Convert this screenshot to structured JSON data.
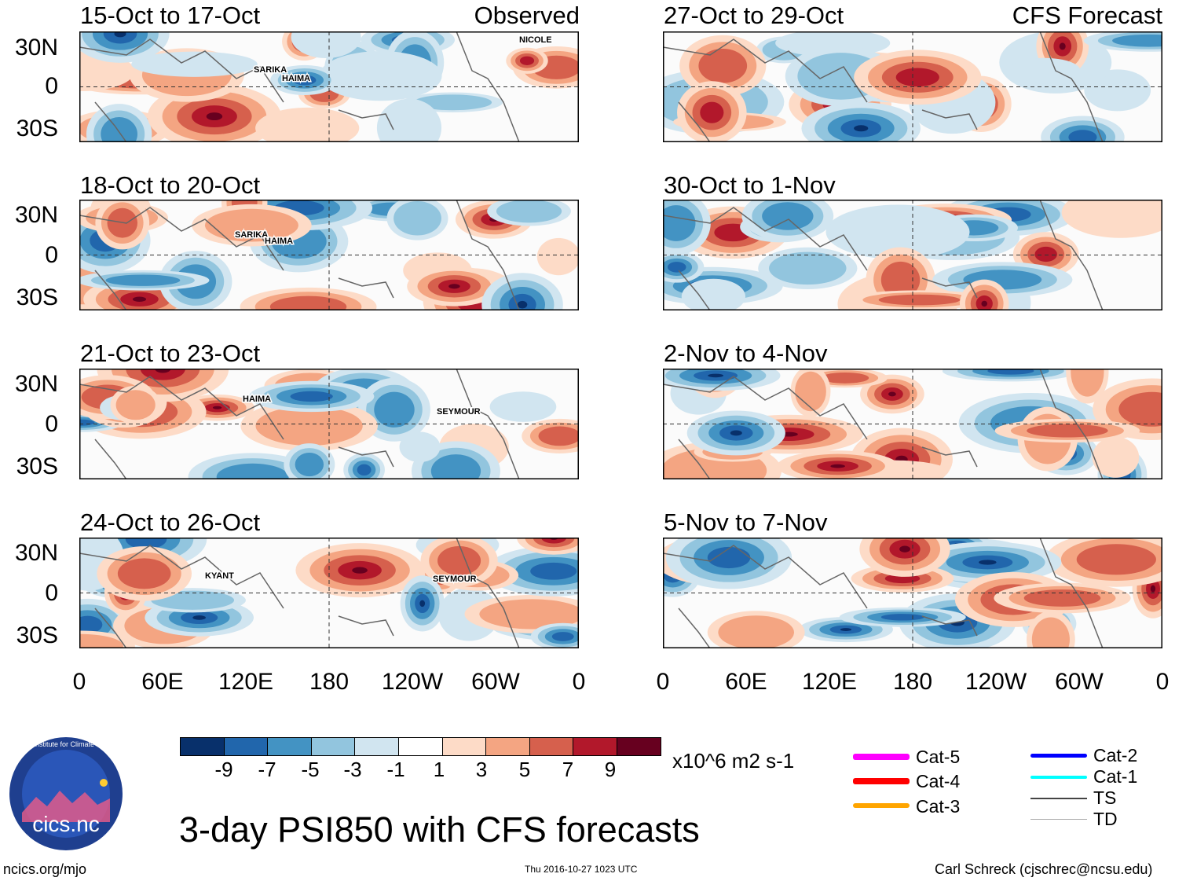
{
  "panels_observed": [
    {
      "title": "15-Oct to 17-Oct",
      "label": "Observed",
      "storms": [
        "NICOLE",
        "SARIKA",
        "HAIMA"
      ]
    },
    {
      "title": "18-Oct to 20-Oct",
      "label": "",
      "storms": [
        "SARIKA",
        "HAIMA"
      ]
    },
    {
      "title": "21-Oct to 23-Oct",
      "label": "",
      "storms": [
        "HAIMA",
        "SEYMOUR"
      ]
    },
    {
      "title": "24-Oct to 26-Oct",
      "label": "",
      "storms": [
        "KYANT",
        "SEYMOUR"
      ]
    }
  ],
  "panels_forecast": [
    {
      "title": "27-Oct to 29-Oct",
      "label": "CFS Forecast"
    },
    {
      "title": "30-Oct to 1-Nov",
      "label": ""
    },
    {
      "title": "2-Nov to 4-Nov",
      "label": ""
    },
    {
      "title": "5-Nov to 7-Nov",
      "label": ""
    }
  ],
  "lat_labels": [
    "30N",
    "0",
    "30S"
  ],
  "lon_labels": [
    "0",
    "60E",
    "120E",
    "180",
    "120W",
    "60W",
    "0"
  ],
  "colorbar": {
    "colors": [
      "#08306b",
      "#2166ac",
      "#4393c3",
      "#92c5de",
      "#d1e5f0",
      "#ffffff",
      "#fddbc7",
      "#f4a582",
      "#d6604d",
      "#b2182b",
      "#67001f"
    ],
    "ticks": [
      "-9",
      "-7",
      "-5",
      "-3",
      "-1",
      "1",
      "3",
      "5",
      "7",
      "9"
    ],
    "units": "x10^6 m2 s-1"
  },
  "legend": [
    {
      "label": "Cat-5",
      "color": "#ff00ff"
    },
    {
      "label": "Cat-4",
      "color": "#ff0000"
    },
    {
      "label": "Cat-3",
      "color": "#ffa500"
    },
    {
      "label": "Cat-2",
      "color": "#0000ff"
    },
    {
      "label": "Cat-1",
      "color": "#00ffff"
    },
    {
      "label": "TS",
      "color": "#444444"
    },
    {
      "label": "TD",
      "color": "#aaaaaa"
    }
  ],
  "logo_text": "cics.nc",
  "logo_ring_text": "Cooperative Institute for Climate and Satellites",
  "main_title": "3-day PSI850 with CFS forecasts",
  "footer_left": "ncics.org/mjo",
  "footer_center": "Thu 2016-10-27 1023 UTC",
  "footer_right": "Carl Schreck (cjschrec@ncsu.edu)"
}
